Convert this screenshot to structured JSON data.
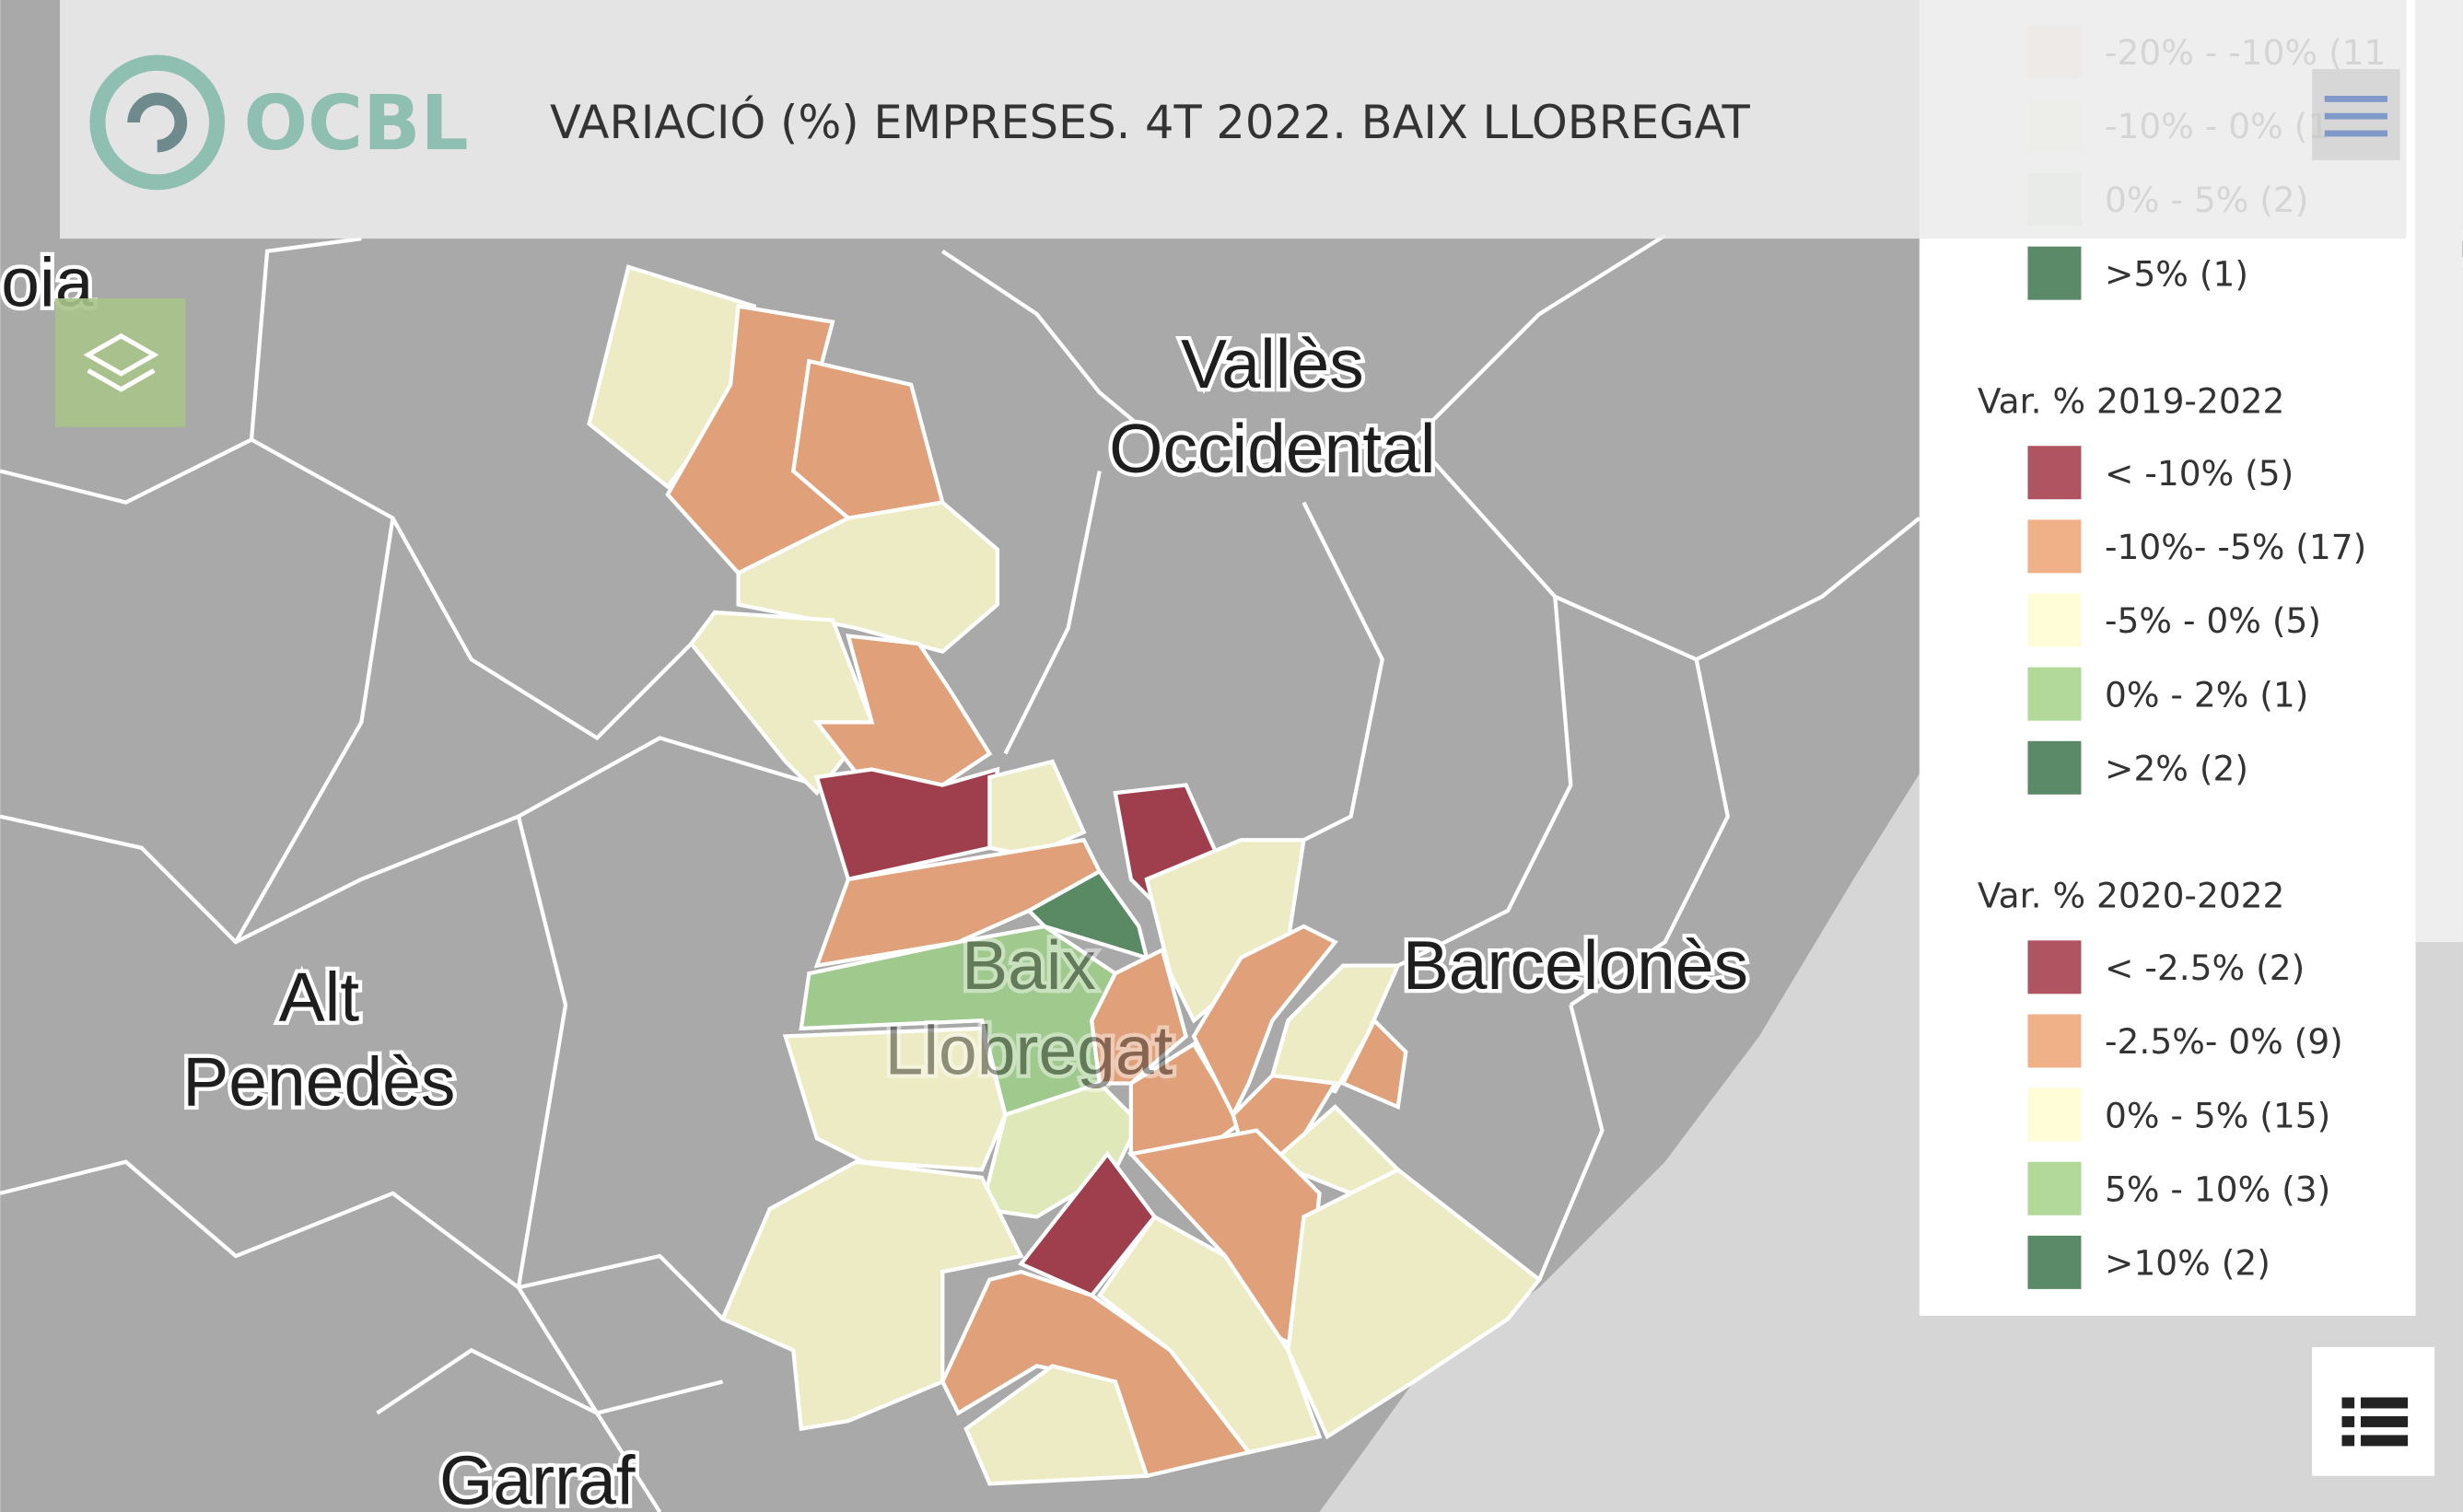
{
  "header": {
    "logo": "OCBL",
    "title": "VARIACIÓ (%) EMPRESES. 4T 2022. BAIX LLOBREGAT"
  },
  "map": {
    "labels": [
      {
        "lines": [
          "oia"
        ]
      },
      {
        "lines": [
          "Vallès",
          "Occidental"
        ]
      },
      {
        "lines": [
          "Alt",
          "Penedès"
        ]
      },
      {
        "lines": [
          "Baix",
          "Llobregat"
        ]
      },
      {
        "lines": [
          "Barcelonès"
        ]
      },
      {
        "lines": [
          "Garraf"
        ]
      },
      {
        "lines": [
          "V"
        ]
      }
    ]
  },
  "legend": {
    "sections": [
      {
        "items": [
          {
            "label": "-20% - -10% (11",
            "color": "#f4d9c4"
          },
          {
            "label": "-10% - 0% (1",
            "color": "#f7f2d6"
          },
          {
            "label": "0% - 5% (2)",
            "color": "#d7e6c8"
          },
          {
            "label": ">5% (1)",
            "color": "#5b8a68"
          }
        ]
      },
      {
        "title": "Var. % 2019-2022",
        "items": [
          {
            "label": "< -10% (5)",
            "color": "#b05462"
          },
          {
            "label": "-10%- -5% (17)",
            "color": "#f0b088"
          },
          {
            "label": "-5% - 0% (5)",
            "color": "#fefdd8"
          },
          {
            "label": "0% - 2% (1)",
            "color": "#b2d89a"
          },
          {
            "label": ">2% (2)",
            "color": "#5b8a68"
          }
        ]
      },
      {
        "title": "Var. % 2020-2022",
        "items": [
          {
            "label": "< -2.5% (2)",
            "color": "#b05462"
          },
          {
            "label": "-2.5%- 0% (9)",
            "color": "#f0b088"
          },
          {
            "label": "0% - 5% (15)",
            "color": "#fefdd8"
          },
          {
            "label": "5% - 10% (3)",
            "color": "#b2d89a"
          },
          {
            "label": ">10% (2)",
            "color": "#5b8a68"
          }
        ]
      }
    ]
  }
}
